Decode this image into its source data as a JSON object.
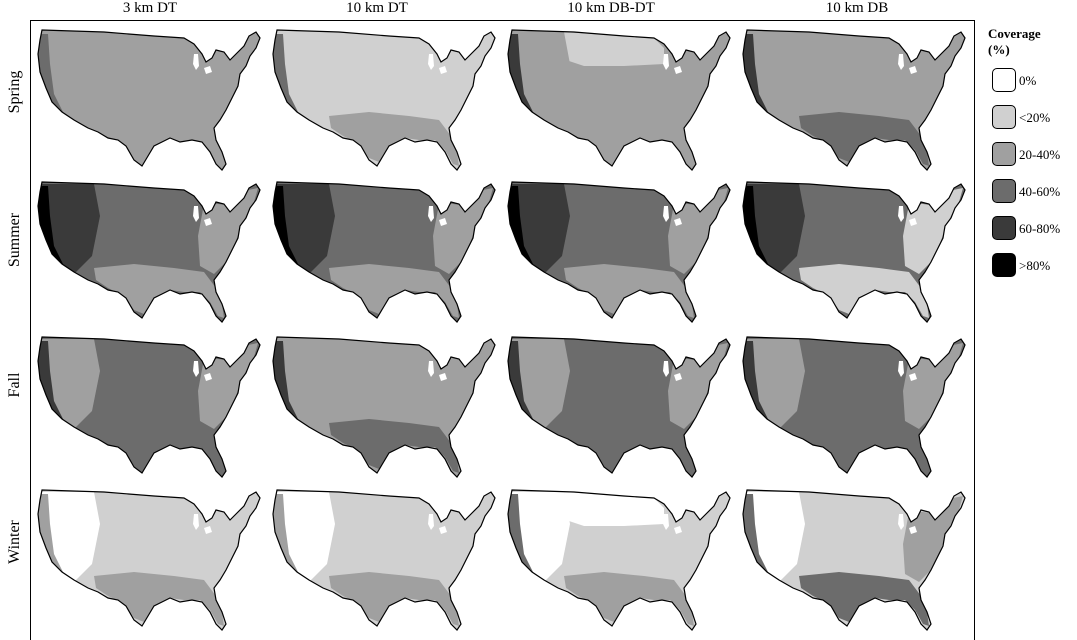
{
  "columns": [
    "3 km DT",
    "10 km DT",
    "10 km DB-DT",
    "10 km DB"
  ],
  "rows": [
    "Spring",
    "Summer",
    "Fall",
    "Winter"
  ],
  "legend": {
    "title_line1": "Coverage",
    "title_line2": "(%)",
    "items": [
      {
        "label": "0%",
        "color": "#ffffff"
      },
      {
        "label": "<20%",
        "color": "#d0d0d0"
      },
      {
        "label": "20-40%",
        "color": "#a0a0a0"
      },
      {
        "label": "40-60%",
        "color": "#6c6c6c"
      },
      {
        "label": "60-80%",
        "color": "#3a3a3a"
      },
      {
        "label": ">80%",
        "color": "#000000"
      }
    ]
  },
  "maps": [
    [
      {
        "base": "#a0a0a0",
        "west": "#a0a0a0",
        "south": "#a0a0a0",
        "east": "#a0a0a0",
        "coast": "#6c6c6c",
        "north": "#a0a0a0"
      },
      {
        "base": "#d0d0d0",
        "west": "#d0d0d0",
        "south": "#a0a0a0",
        "east": "#d0d0d0",
        "coast": "#6c6c6c",
        "north": "#d0d0d0"
      },
      {
        "base": "#a0a0a0",
        "west": "#a0a0a0",
        "south": "#a0a0a0",
        "east": "#a0a0a0",
        "coast": "#3a3a3a",
        "north": "#d0d0d0"
      },
      {
        "base": "#a0a0a0",
        "west": "#a0a0a0",
        "south": "#6c6c6c",
        "east": "#a0a0a0",
        "coast": "#3a3a3a",
        "north": "#a0a0a0"
      }
    ],
    [
      {
        "base": "#6c6c6c",
        "west": "#3a3a3a",
        "south": "#a0a0a0",
        "east": "#a0a0a0",
        "coast": "#000000",
        "north": "#6c6c6c"
      },
      {
        "base": "#6c6c6c",
        "west": "#3a3a3a",
        "south": "#a0a0a0",
        "east": "#a0a0a0",
        "coast": "#000000",
        "north": "#6c6c6c"
      },
      {
        "base": "#6c6c6c",
        "west": "#3a3a3a",
        "south": "#a0a0a0",
        "east": "#a0a0a0",
        "coast": "#000000",
        "north": "#6c6c6c"
      },
      {
        "base": "#6c6c6c",
        "west": "#3a3a3a",
        "south": "#d0d0d0",
        "east": "#d0d0d0",
        "coast": "#000000",
        "north": "#6c6c6c"
      }
    ],
    [
      {
        "base": "#6c6c6c",
        "west": "#a0a0a0",
        "south": "#6c6c6c",
        "east": "#a0a0a0",
        "coast": "#3a3a3a",
        "north": "#6c6c6c"
      },
      {
        "base": "#a0a0a0",
        "west": "#a0a0a0",
        "south": "#6c6c6c",
        "east": "#a0a0a0",
        "coast": "#3a3a3a",
        "north": "#a0a0a0"
      },
      {
        "base": "#6c6c6c",
        "west": "#a0a0a0",
        "south": "#6c6c6c",
        "east": "#a0a0a0",
        "coast": "#3a3a3a",
        "north": "#6c6c6c"
      },
      {
        "base": "#6c6c6c",
        "west": "#a0a0a0",
        "south": "#6c6c6c",
        "east": "#a0a0a0",
        "coast": "#3a3a3a",
        "north": "#6c6c6c"
      }
    ],
    [
      {
        "base": "#d0d0d0",
        "west": "#ffffff",
        "south": "#a0a0a0",
        "east": "#d0d0d0",
        "coast": "#a0a0a0",
        "north": "#d0d0d0"
      },
      {
        "base": "#d0d0d0",
        "west": "#ffffff",
        "south": "#a0a0a0",
        "east": "#d0d0d0",
        "coast": "#a0a0a0",
        "north": "#d0d0d0"
      },
      {
        "base": "#d0d0d0",
        "west": "#ffffff",
        "south": "#a0a0a0",
        "east": "#d0d0d0",
        "coast": "#6c6c6c",
        "north": "#ffffff"
      },
      {
        "base": "#d0d0d0",
        "west": "#ffffff",
        "south": "#6c6c6c",
        "east": "#a0a0a0",
        "coast": "#6c6c6c",
        "north": "#d0d0d0"
      }
    ]
  ]
}
